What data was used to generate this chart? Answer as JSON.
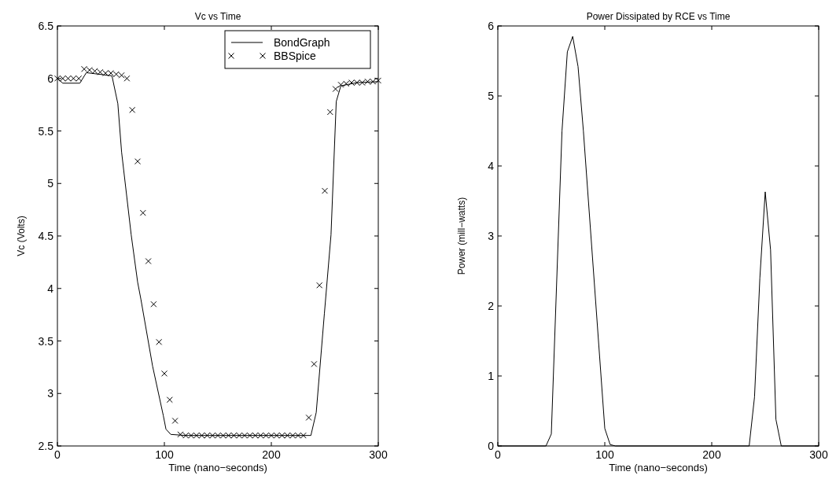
{
  "chart_data": [
    {
      "type": "line",
      "title": "Vc vs Time",
      "xlabel": "Time (nano−seconds)",
      "ylabel": "Vc (Volts)",
      "xlim": [
        0,
        300
      ],
      "xticks": [
        0,
        100,
        200,
        300
      ],
      "ylim": [
        2.5,
        6.5
      ],
      "yticks": [
        2.5,
        3,
        3.5,
        4,
        4.5,
        5,
        5.5,
        6,
        6.5
      ],
      "grid": false,
      "legend": "top right",
      "series": [
        {
          "name": "BondGraph",
          "color": "#000000",
          "marker": "none",
          "line_style": "solid",
          "x": [
            0,
            5,
            21,
            27,
            51,
            56.5,
            60,
            69,
            75,
            78,
            89,
            99,
            101.5,
            106,
            120,
            200,
            237,
            242,
            249.6,
            255.8,
            260.7,
            265,
            280,
            300
          ],
          "values": [
            6.0,
            5.955,
            5.955,
            6.055,
            6.025,
            5.76,
            5.3,
            4.51,
            4.06,
            3.9,
            3.26,
            2.79,
            2.66,
            2.61,
            2.6,
            2.6,
            2.6,
            2.82,
            3.76,
            4.51,
            5.78,
            5.93,
            5.96,
            5.97
          ]
        },
        {
          "name": "BBSpice",
          "type": "scatter",
          "color": "#000000",
          "marker": "cross",
          "x": [
            0,
            5,
            10,
            15,
            20,
            25,
            30,
            35,
            40,
            45,
            50,
            55,
            60,
            65,
            70,
            75,
            80,
            85,
            90,
            95,
            100,
            105,
            110,
            115,
            120,
            125,
            130,
            135,
            140,
            145,
            150,
            155,
            160,
            165,
            170,
            175,
            180,
            185,
            190,
            195,
            200,
            205,
            210,
            215,
            220,
            225,
            230,
            235,
            240,
            245,
            250,
            255,
            260,
            265,
            270,
            275,
            280,
            285,
            290,
            295,
            300
          ],
          "values": [
            6.0,
            6.0,
            6.0,
            6.0,
            6.0,
            6.09,
            6.08,
            6.07,
            6.06,
            6.05,
            6.05,
            6.04,
            6.03,
            6.0,
            5.7,
            5.21,
            4.72,
            4.26,
            3.85,
            3.49,
            3.19,
            2.94,
            2.74,
            2.61,
            2.6,
            2.6,
            2.6,
            2.6,
            2.6,
            2.6,
            2.6,
            2.6,
            2.6,
            2.6,
            2.6,
            2.6,
            2.6,
            2.6,
            2.6,
            2.6,
            2.6,
            2.6,
            2.6,
            2.6,
            2.6,
            2.6,
            2.6,
            2.77,
            3.28,
            4.03,
            4.93,
            5.68,
            5.9,
            5.94,
            5.95,
            5.96,
            5.96,
            5.96,
            5.97,
            5.97,
            5.98
          ]
        }
      ]
    },
    {
      "type": "line",
      "title": "Power Dissipated by RCE vs Time",
      "xlabel": "Time (nano−seconds)",
      "ylabel": "Power (mill−watts)",
      "xlim": [
        0,
        300
      ],
      "xticks": [
        0,
        100,
        200,
        300
      ],
      "ylim": [
        0,
        6
      ],
      "yticks": [
        0,
        1,
        2,
        3,
        4,
        5,
        6
      ],
      "grid": false,
      "legend": false,
      "series": [
        {
          "color": "#000000",
          "marker": "none",
          "line_style": "solid",
          "x": [
            0,
            45,
            50,
            60,
            65,
            70,
            75,
            80,
            100,
            105,
            110,
            235,
            240,
            245,
            250,
            255,
            260,
            265,
            300
          ],
          "values": [
            0,
            0,
            0.17,
            4.5,
            5.63,
            5.85,
            5.42,
            4.5,
            0.25,
            0.02,
            0,
            0,
            0.7,
            2.4,
            3.63,
            2.8,
            0.38,
            0,
            0
          ]
        }
      ]
    }
  ]
}
